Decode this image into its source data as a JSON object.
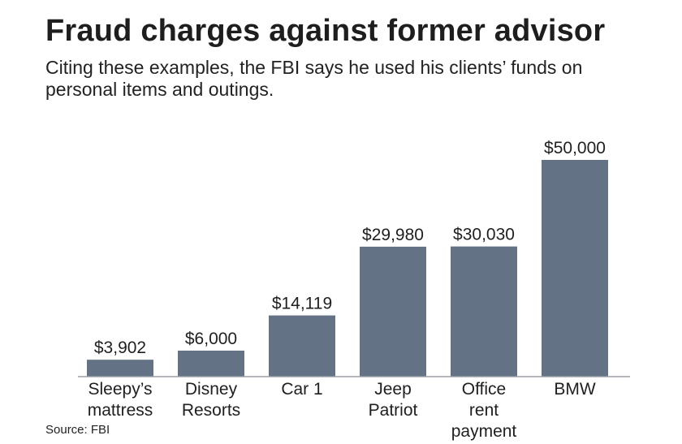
{
  "chart_data": {
    "type": "bar",
    "title": "Fraud charges against former advisor",
    "subtitle": "Citing these examples, the FBI says he used his clients’ funds on personal items and outings.",
    "categories": [
      [
        "Sleepy’s",
        "mattress"
      ],
      [
        "Disney",
        "Resorts"
      ],
      [
        "Car 1"
      ],
      [
        "Jeep",
        "Patriot"
      ],
      [
        "Office",
        "rent",
        "payment"
      ],
      [
        "BMW"
      ]
    ],
    "values": [
      3902,
      6000,
      14119,
      29980,
      30030,
      50000
    ],
    "value_labels": [
      "$3,902",
      "$6,000",
      "$14,119",
      "$29,980",
      "$30,030",
      "$50,000"
    ],
    "ylim": [
      0,
      50000
    ],
    "grid": false,
    "legend": "none",
    "source": "Source: FBI",
    "colors": {
      "bar": "#637285",
      "axis": "#9aa1a9",
      "text": "#1f1f1f"
    }
  }
}
